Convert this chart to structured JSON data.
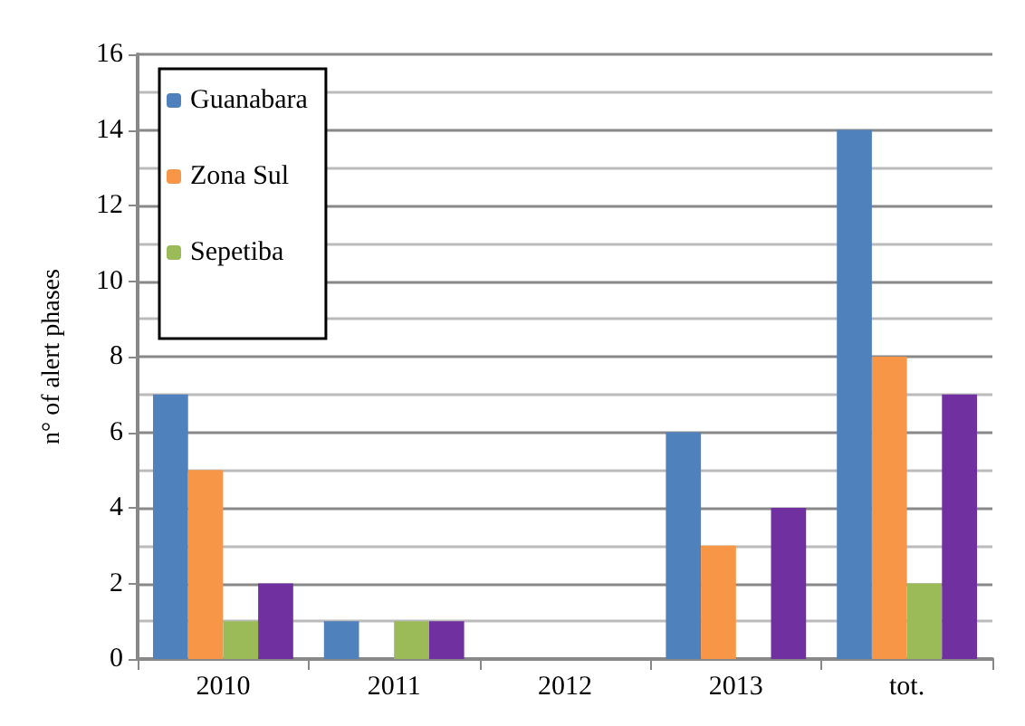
{
  "chart_data": {
    "type": "bar",
    "ylabel": "n° of alert phases",
    "categories": [
      "2010",
      "2011",
      "2012",
      "2013",
      "tot."
    ],
    "series": [
      {
        "name": "Guanabara",
        "color": "#4f81bd",
        "values": [
          7,
          1,
          0,
          6,
          14
        ]
      },
      {
        "name": "Zona Sul",
        "color": "#f79646",
        "values": [
          5,
          0,
          0,
          3,
          8
        ]
      },
      {
        "name": "Sepetiba",
        "color": "#9bbb59",
        "values": [
          1,
          1,
          0,
          0,
          2
        ]
      },
      {
        "color": "#7030a0",
        "values": [
          2,
          1,
          0,
          4,
          7
        ]
      }
    ],
    "ylim": [
      0,
      16
    ],
    "yticks": [
      0,
      2,
      4,
      6,
      8,
      10,
      12,
      14,
      16
    ],
    "grid": "y",
    "legend": "top left"
  }
}
